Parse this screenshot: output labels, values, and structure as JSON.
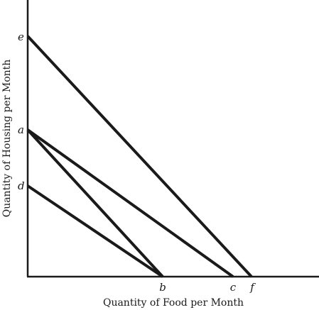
{
  "diagram": {
    "x_axis_title": "Quantity of Food per Month",
    "y_axis_title": "Quantity of Housing per Month",
    "points": {
      "e": "e",
      "a": "a",
      "d": "d",
      "b": "b",
      "c": "c",
      "f": "f"
    },
    "lines": [
      {
        "name": "line-e-f",
        "from": "e",
        "to": "f"
      },
      {
        "name": "line-a-c",
        "from": "a",
        "to": "c"
      },
      {
        "name": "line-a-b",
        "from": "a",
        "to": "b"
      },
      {
        "name": "line-d-b",
        "from": "d",
        "to": "b"
      }
    ]
  }
}
